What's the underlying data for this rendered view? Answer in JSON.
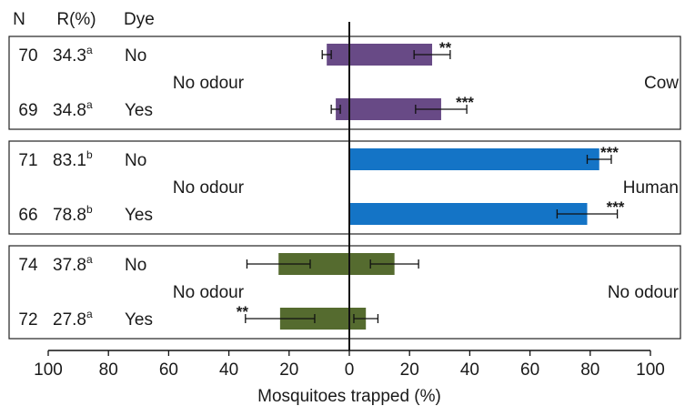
{
  "header": {
    "n": "N",
    "r": "R(%)",
    "dye": "Dye"
  },
  "chart_data": {
    "type": "bar",
    "orientation": "horizontal-diverging",
    "xlabel": "Mosquitoes trapped (%)",
    "xlim": [
      -100,
      100
    ],
    "tick_values": [
      -100,
      -80,
      -60,
      -40,
      -20,
      0,
      20,
      40,
      60,
      80,
      100
    ],
    "tick_labels": [
      "100",
      "80",
      "60",
      "40",
      "20",
      "0",
      "20",
      "40",
      "60",
      "80",
      "100"
    ],
    "panels": [
      {
        "left_label": "No odour",
        "right_label": "Cow",
        "color": "#684a86",
        "rows": [
          {
            "n": "70",
            "r": "34.3",
            "r_sup": "a",
            "dye": "No",
            "left": 7.5,
            "left_err": 1.5,
            "right": 27.5,
            "right_err": 6,
            "sig_right": "**",
            "sig_left": ""
          },
          {
            "n": "69",
            "r": "34.8",
            "r_sup": "a",
            "dye": "Yes",
            "left": 4.5,
            "left_err": 1.5,
            "right": 30.5,
            "right_err": 8.5,
            "sig_right": "***",
            "sig_left": ""
          }
        ]
      },
      {
        "left_label": "No odour",
        "right_label": "Human",
        "color": "#1474c6",
        "rows": [
          {
            "n": "71",
            "r": "83.1",
            "r_sup": "b",
            "dye": "No",
            "left": 0,
            "left_err": 0,
            "right": 83,
            "right_err": 4,
            "sig_right": "***",
            "sig_left": ""
          },
          {
            "n": "66",
            "r": "78.8",
            "r_sup": "b",
            "dye": "Yes",
            "left": 0,
            "left_err": 0,
            "right": 79,
            "right_err": 10,
            "sig_right": "***",
            "sig_left": ""
          }
        ]
      },
      {
        "left_label": "No odour",
        "right_label": "No odour",
        "color": "#556b2f",
        "rows": [
          {
            "n": "74",
            "r": "37.8",
            "r_sup": "a",
            "dye": "No",
            "left": 23.5,
            "left_err": 10.5,
            "right": 15,
            "right_err": 8,
            "sig_right": "",
            "sig_left": ""
          },
          {
            "n": "72",
            "r": "27.8",
            "r_sup": "a",
            "dye": "Yes",
            "left": 23,
            "left_err": 11.5,
            "right": 5.5,
            "right_err": 4,
            "sig_right": "",
            "sig_left": "**"
          }
        ]
      }
    ]
  }
}
